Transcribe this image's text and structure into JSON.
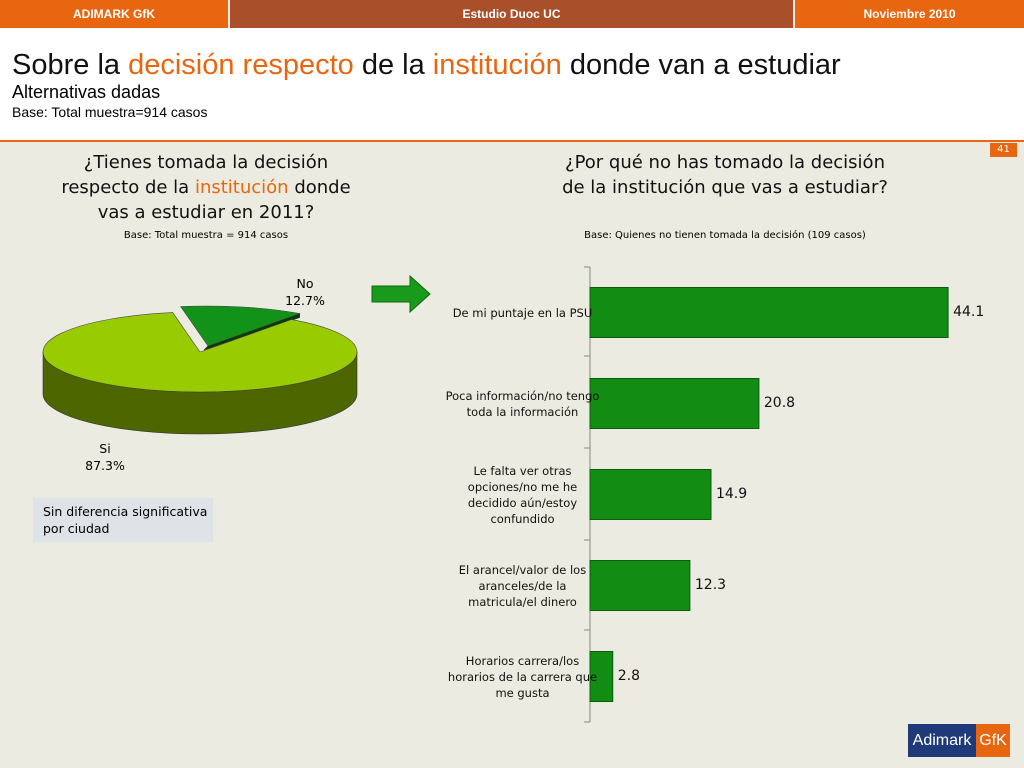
{
  "header": {
    "left": "ADIMARK GfK",
    "center": "Estudio Duoc UC",
    "right": "Noviembre 2010"
  },
  "title_parts": [
    "Sobre la",
    "decisión respecto",
    "de la",
    "institución",
    "donde van a estudiar"
  ],
  "subtitle": "Alternativas dadas",
  "base": "Base: Total muestra=914 casos",
  "page_number": "41",
  "note": "Sin diferencia significativa por ciudad",
  "logo": {
    "left": "Adimark",
    "right": "GfK"
  },
  "chart_data": [
    {
      "type": "pie",
      "title_parts": [
        "¿Tienes tomada la decisión respecto de la",
        "institución",
        "donde vas a estudiar en 2011?"
      ],
      "subtitle": "Base: Total muestra = 914 casos",
      "categories": [
        "No",
        "Si"
      ],
      "values": [
        12.7,
        87.3
      ],
      "value_labels": [
        "12.7%",
        "87.3%"
      ],
      "colors": [
        "#13921a",
        "#99cc00"
      ]
    },
    {
      "type": "bar",
      "title": "¿Por qué no has tomado la decisión de la institución que vas a estudiar?",
      "subtitle": "Base: Quienes no tienen tomada la decisión (109 casos)",
      "categories": [
        "De mi puntaje en la PSU",
        "Poca información/no tengo toda la información",
        "Le falta ver otras opciones/no me he decidido aún/estoy confundido",
        "El arancel/valor de los aranceles/de la matricula/el dinero",
        "Horarios carrera/los horarios de la carrera que me gusta"
      ],
      "values": [
        44.1,
        20.8,
        14.9,
        12.3,
        2.8
      ],
      "color": "#128c12"
    }
  ]
}
